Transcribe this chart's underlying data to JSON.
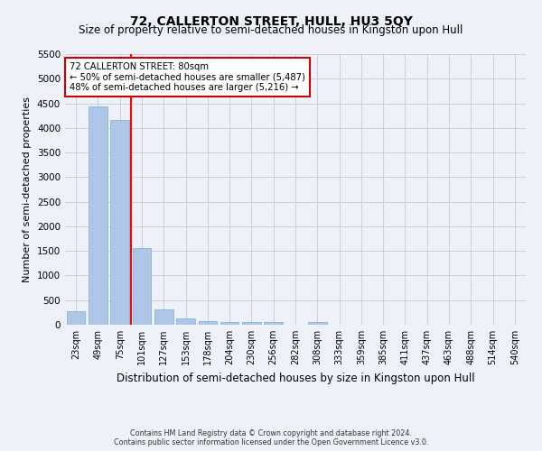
{
  "title": "72, CALLERTON STREET, HULL, HU3 5QY",
  "subtitle": "Size of property relative to semi-detached houses in Kingston upon Hull",
  "xlabel": "Distribution of semi-detached houses by size in Kingston upon Hull",
  "ylabel": "Number of semi-detached properties",
  "footer1": "Contains HM Land Registry data © Crown copyright and database right 2024.",
  "footer2": "Contains public sector information licensed under the Open Government Licence v3.0.",
  "categories": [
    "23sqm",
    "49sqm",
    "75sqm",
    "101sqm",
    "127sqm",
    "153sqm",
    "178sqm",
    "204sqm",
    "230sqm",
    "256sqm",
    "282sqm",
    "308sqm",
    "333sqm",
    "359sqm",
    "385sqm",
    "411sqm",
    "437sqm",
    "463sqm",
    "488sqm",
    "514sqm",
    "540sqm"
  ],
  "values": [
    280,
    4430,
    4160,
    1560,
    320,
    125,
    75,
    60,
    55,
    55,
    0,
    55,
    0,
    0,
    0,
    0,
    0,
    0,
    0,
    0,
    0
  ],
  "bar_color": "#aec6e8",
  "bar_edge_color": "#7aadd4",
  "red_line_bar_index": 2,
  "annotation_title": "72 CALLERTON STREET: 80sqm",
  "annotation_line1": "← 50% of semi-detached houses are smaller (5,487)",
  "annotation_line2": "48% of semi-detached houses are larger (5,216) →",
  "annotation_box_color": "#ffffff",
  "annotation_box_edge": "#cc0000",
  "ylim": [
    0,
    5500
  ],
  "yticks": [
    0,
    500,
    1000,
    1500,
    2000,
    2500,
    3000,
    3500,
    4000,
    4500,
    5000,
    5500
  ],
  "background_color": "#eef2f8",
  "grid_color": "#c8d0dc",
  "title_fontsize": 10,
  "subtitle_fontsize": 8.5,
  "axis_label_fontsize": 8,
  "tick_fontsize": 7.5,
  "xtick_fontsize": 7
}
